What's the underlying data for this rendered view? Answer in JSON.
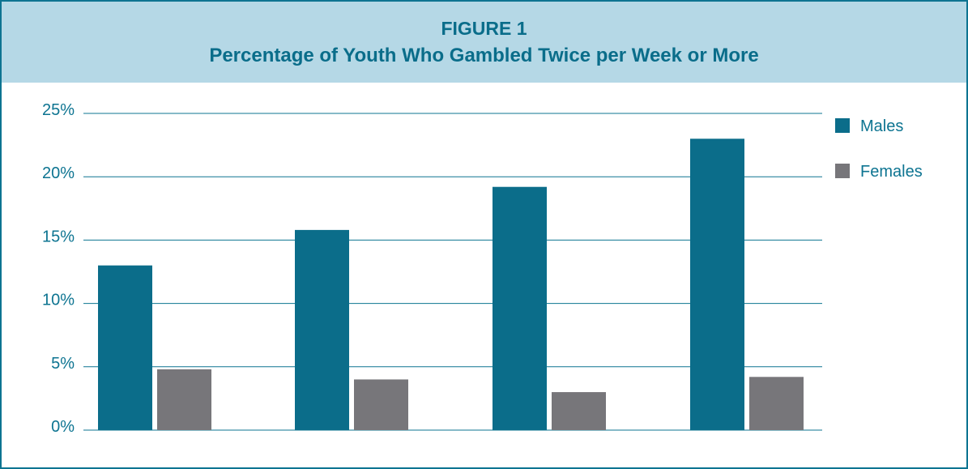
{
  "figure": {
    "label": "FIGURE 1",
    "title": "Percentage of Youth Who Gambled Twice per Week or More"
  },
  "colors": {
    "accent": "#0d7491",
    "header_bg": "#b5d8e6",
    "males": "#0b6d8a",
    "females": "#77767a"
  },
  "chart_data": {
    "type": "bar",
    "title": "Percentage of Youth Who Gambled Twice per Week or More",
    "categories": [
      "",
      "",
      "",
      ""
    ],
    "series": [
      {
        "name": "Males",
        "values": [
          13.0,
          15.8,
          19.2,
          23.0
        ]
      },
      {
        "name": "Females",
        "values": [
          4.8,
          4.0,
          3.0,
          4.2
        ]
      }
    ],
    "ylim": [
      0,
      25
    ],
    "yticks": [
      0,
      5,
      10,
      15,
      20,
      25
    ],
    "ytick_labels": [
      "0%",
      "5%",
      "10%",
      "15%",
      "20%",
      "25%"
    ],
    "xlabel": "",
    "ylabel": "",
    "grid": true,
    "legend_position": "right"
  }
}
